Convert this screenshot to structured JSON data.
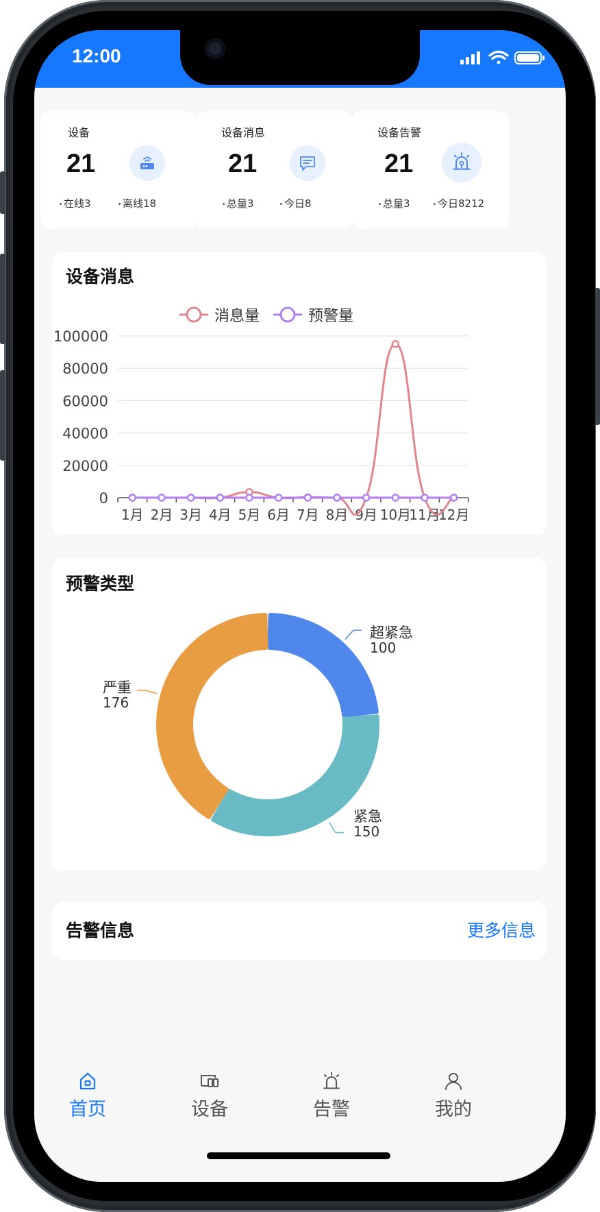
{
  "status_bar": {
    "time": "12:00"
  },
  "stats": [
    {
      "title": "设备",
      "count": "21",
      "icon": "router-icon",
      "sub_left": "在线3",
      "sub_right": "离线18"
    },
    {
      "title": "设备消息",
      "count": "21",
      "icon": "message-icon",
      "sub_left": "总量3",
      "sub_right": "今日8"
    },
    {
      "title": "设备告警",
      "count": "21",
      "icon": "alarm-light-icon",
      "sub_left": "总量3",
      "sub_right": "今日8212"
    }
  ],
  "messages_panel": {
    "title": "设备消息"
  },
  "alert_types_panel": {
    "title": "预警类型"
  },
  "alert_info": {
    "title": "告警信息",
    "more_label": "更多信息"
  },
  "tabbar": [
    {
      "label": "首页",
      "icon": "home-icon",
      "active": true
    },
    {
      "label": "设备",
      "icon": "device-icon",
      "active": false
    },
    {
      "label": "告警",
      "icon": "alarm-light-icon",
      "active": false
    },
    {
      "label": "我的",
      "icon": "user-icon",
      "active": false
    }
  ],
  "colors": {
    "accent": "#1677ff",
    "message_series": "#e0868f",
    "alert_series": "#b07ef5",
    "super_urgent": "#5087ec",
    "urgent": "#68bbc4",
    "serious": "#e99d42"
  },
  "chart_data": [
    {
      "type": "line",
      "x": [
        "1月",
        "2月",
        "3月",
        "4月",
        "5月",
        "6月",
        "7月",
        "8月",
        "9月",
        "10月",
        "11月",
        "12月"
      ],
      "ylim": [
        0,
        100000
      ],
      "yticks": [
        0,
        20000,
        40000,
        60000,
        80000,
        100000
      ],
      "grid": true,
      "legend_position": "top-center",
      "series": [
        {
          "name": "消息量",
          "values": [
            0,
            0,
            0,
            0,
            3500,
            0,
            300,
            0,
            0,
            95000,
            0,
            0
          ]
        },
        {
          "name": "预警量",
          "values": [
            0,
            0,
            0,
            0,
            0,
            0,
            0,
            0,
            0,
            0,
            0,
            0
          ]
        }
      ]
    },
    {
      "type": "pie",
      "donut": true,
      "labels": [
        "超紧急",
        "紧急",
        "严重"
      ],
      "values": [
        100,
        150,
        176
      ]
    }
  ]
}
